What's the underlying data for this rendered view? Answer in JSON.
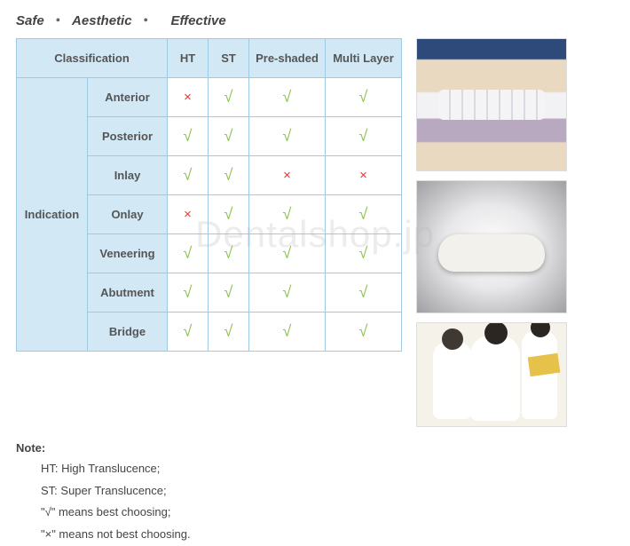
{
  "tagline": {
    "w1": "Safe",
    "w2": "Aesthetic",
    "w3": "Effective"
  },
  "watermark": "Dentalshop.jp",
  "table": {
    "header": {
      "classification": "Classification",
      "ht": "HT",
      "st": "ST",
      "preshaded": "Pre-shaded",
      "multilayer": "Multi Layer"
    },
    "rowgroup_label": "Indication",
    "rows": [
      {
        "name": "Anterior",
        "ht": "x",
        "st": "v",
        "ps": "v",
        "ml": "v"
      },
      {
        "name": "Posterior",
        "ht": "v",
        "st": "v",
        "ps": "v",
        "ml": "v"
      },
      {
        "name": "Inlay",
        "ht": "v",
        "st": "v",
        "ps": "x",
        "ml": "x"
      },
      {
        "name": "Onlay",
        "ht": "x",
        "st": "v",
        "ps": "v",
        "ml": "v"
      },
      {
        "name": "Veneering",
        "ht": "v",
        "st": "v",
        "ps": "v",
        "ml": "v"
      },
      {
        "name": "Abutment",
        "ht": "v",
        "st": "v",
        "ps": "v",
        "ml": "v"
      },
      {
        "name": "Bridge",
        "ht": "v",
        "st": "v",
        "ps": "v",
        "ml": "v"
      }
    ]
  },
  "glyph": {
    "check": "√",
    "cross": "×"
  },
  "note": {
    "heading": "Note:",
    "lines": [
      "HT: High Translucence;",
      "ST: Super Translucence;",
      "\"√\" means best choosing;",
      "\"×\" means not best choosing."
    ]
  },
  "colors": {
    "header_bg": "#d2e8f5",
    "border": "#9ec9e2",
    "check": "#8bc34a",
    "cross": "#e53935"
  }
}
